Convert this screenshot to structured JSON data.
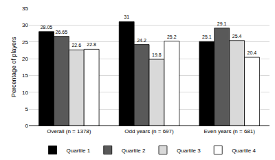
{
  "chart_data": {
    "type": "bar",
    "y_label": "Percentage of players",
    "categories": [
      "Overall (n = 1378)",
      "Odd years (n = 697)",
      "Even years (n = 681)"
    ],
    "series": [
      {
        "name": "Quartile 1",
        "color": "#000000",
        "values": [
          28.05,
          31,
          25.1
        ]
      },
      {
        "name": "Quartile 2",
        "color": "#595959",
        "values": [
          26.65,
          24.2,
          29.1
        ]
      },
      {
        "name": "Quartile 3",
        "color": "#d9d9d9",
        "values": [
          22.6,
          19.8,
          25.4
        ]
      },
      {
        "name": "Quartile 4",
        "color": "#ffffff",
        "values": [
          22.8,
          25.2,
          20.4
        ]
      }
    ],
    "ylim": [
      0,
      35
    ],
    "yticks": [
      0,
      5,
      10,
      15,
      20,
      25,
      30,
      35
    ],
    "grid": true,
    "legend": "bottom",
    "data_labels": true
  }
}
